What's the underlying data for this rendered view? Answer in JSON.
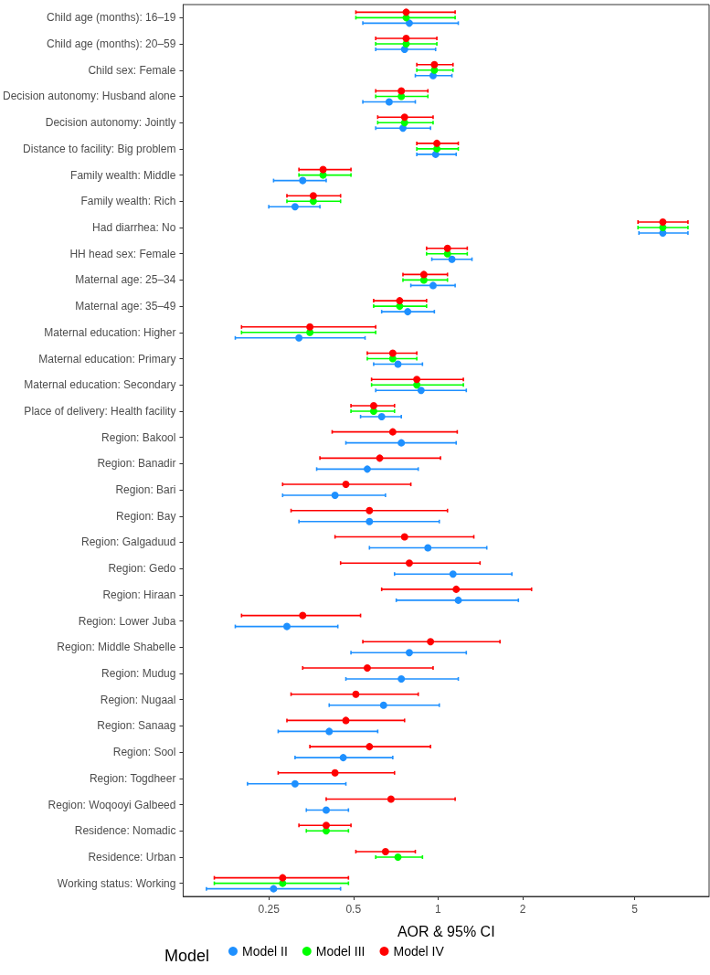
{
  "chart_data": {
    "type": "scatter",
    "orientation": "horizontal",
    "log": "x",
    "marker": "circle",
    "legend": "bottom",
    "legend_title": "Model",
    "xlabel": "AOR & 95% CI",
    "xlim": [
      0.124,
      9.2
    ],
    "xticks": [
      0.25,
      0.5,
      1,
      2,
      5
    ],
    "categories": [
      "Child age (months): 16–19",
      "Child age (months): 20–59",
      "Child sex: Female",
      "Decision autonomy: Husband alone",
      "Decision autonomy: Jointly",
      "Distance to facility: Big problem",
      "Family wealth: Middle",
      "Family wealth: Rich",
      "Had diarrhea: No",
      "HH head sex: Female",
      "Maternal age: 25–34",
      "Maternal age: 35–49",
      "Maternal education: Higher",
      "Maternal education: Primary",
      "Maternal education: Secondary",
      "Place of delivery: Health facility",
      "Region: Bakool",
      "Region: Banadir",
      "Region: Bari",
      "Region: Bay",
      "Region: Galgaduud",
      "Region: Gedo",
      "Region: Hiraan",
      "Region: Lower Juba",
      "Region: Middle Shabelle",
      "Region: Mudug",
      "Region: Nugaal",
      "Region: Sanaag",
      "Region: Sool",
      "Region: Togdheer",
      "Region: Woqooyi Galbeed",
      "Residence: Nomadic",
      "Residence: Urban",
      "Working status: Working"
    ],
    "series": [
      {
        "name": "Model II",
        "color": "#1e90ff",
        "values": [
          0.79,
          0.76,
          0.96,
          0.67,
          0.75,
          0.98,
          0.33,
          0.31,
          6.3,
          1.12,
          0.96,
          0.78,
          0.32,
          0.72,
          0.87,
          0.63,
          0.74,
          0.56,
          0.43,
          0.57,
          0.92,
          1.13,
          1.18,
          0.29,
          0.79,
          0.74,
          0.64,
          0.41,
          0.46,
          0.31,
          0.4,
          null,
          null,
          0.26
        ],
        "errors": [
          [
            0.54,
            1.18
          ],
          [
            0.6,
            0.98
          ],
          [
            0.83,
            1.12
          ],
          [
            0.54,
            0.83
          ],
          [
            0.6,
            0.94
          ],
          [
            0.84,
            1.16
          ],
          [
            0.26,
            0.4
          ],
          [
            0.25,
            0.38
          ],
          [
            5.18,
            7.74
          ],
          [
            0.95,
            1.32
          ],
          [
            0.8,
            1.15
          ],
          [
            0.63,
            0.97
          ],
          [
            0.19,
            0.55
          ],
          [
            0.59,
            0.88
          ],
          [
            0.6,
            1.26
          ],
          [
            0.53,
            0.74
          ],
          [
            0.47,
            1.16
          ],
          [
            0.37,
            0.85
          ],
          [
            0.28,
            0.65
          ],
          [
            0.32,
            1.01
          ],
          [
            0.57,
            1.49
          ],
          [
            0.7,
            1.83
          ],
          [
            0.71,
            1.93
          ],
          [
            0.19,
            0.44
          ],
          [
            0.49,
            1.26
          ],
          [
            0.47,
            1.18
          ],
          [
            0.41,
            1.01
          ],
          [
            0.27,
            0.61
          ],
          [
            0.31,
            0.69
          ],
          [
            0.21,
            0.47
          ],
          [
            0.34,
            0.48
          ],
          null,
          null,
          [
            0.15,
            0.45
          ]
        ]
      },
      {
        "name": "Model III",
        "color": "#00ff00",
        "values": [
          0.77,
          0.77,
          0.97,
          0.74,
          0.76,
          0.99,
          0.39,
          0.36,
          6.3,
          1.08,
          0.89,
          0.73,
          0.35,
          0.69,
          0.84,
          0.59,
          null,
          null,
          null,
          null,
          null,
          null,
          null,
          null,
          null,
          null,
          null,
          null,
          null,
          null,
          null,
          0.4,
          0.72,
          0.28
        ],
        "errors": [
          [
            0.51,
            1.15
          ],
          [
            0.6,
            0.99
          ],
          [
            0.84,
            1.13
          ],
          [
            0.6,
            0.92
          ],
          [
            0.61,
            0.96
          ],
          [
            0.84,
            1.18
          ],
          [
            0.32,
            0.49
          ],
          [
            0.29,
            0.45
          ],
          [
            5.14,
            7.74
          ],
          [
            0.91,
            1.27
          ],
          [
            0.75,
            1.08
          ],
          [
            0.59,
            0.91
          ],
          [
            0.2,
            0.6
          ],
          [
            0.56,
            0.84
          ],
          [
            0.58,
            1.23
          ],
          [
            0.49,
            0.7
          ],
          null,
          null,
          null,
          null,
          null,
          null,
          null,
          null,
          null,
          null,
          null,
          null,
          null,
          null,
          null,
          [
            0.34,
            0.48
          ],
          [
            0.6,
            0.88
          ],
          [
            0.16,
            0.48
          ]
        ]
      },
      {
        "name": "Model IV",
        "color": "#ff0000",
        "values": [
          0.77,
          0.77,
          0.97,
          0.74,
          0.76,
          0.99,
          0.39,
          0.36,
          6.3,
          1.08,
          0.89,
          0.73,
          0.35,
          0.69,
          0.84,
          0.59,
          0.69,
          0.62,
          0.47,
          0.57,
          0.76,
          0.79,
          1.16,
          0.33,
          0.94,
          0.56,
          0.51,
          0.47,
          0.57,
          0.43,
          0.68,
          0.4,
          0.65,
          0.28
        ],
        "errors": [
          [
            0.51,
            1.15
          ],
          [
            0.6,
            0.99
          ],
          [
            0.84,
            1.13
          ],
          [
            0.6,
            0.92
          ],
          [
            0.61,
            0.96
          ],
          [
            0.84,
            1.18
          ],
          [
            0.32,
            0.49
          ],
          [
            0.29,
            0.45
          ],
          [
            5.14,
            7.74
          ],
          [
            0.91,
            1.27
          ],
          [
            0.75,
            1.08
          ],
          [
            0.59,
            0.91
          ],
          [
            0.2,
            0.6
          ],
          [
            0.56,
            0.84
          ],
          [
            0.58,
            1.23
          ],
          [
            0.49,
            0.7
          ],
          [
            0.42,
            1.17
          ],
          [
            0.38,
            1.02
          ],
          [
            0.28,
            0.8
          ],
          [
            0.3,
            1.08
          ],
          [
            0.43,
            1.34
          ],
          [
            0.45,
            1.41
          ],
          [
            0.63,
            2.15
          ],
          [
            0.2,
            0.53
          ],
          [
            0.54,
            1.66
          ],
          [
            0.33,
            0.96
          ],
          [
            0.3,
            0.85
          ],
          [
            0.29,
            0.76
          ],
          [
            0.35,
            0.94
          ],
          [
            0.27,
            0.7
          ],
          [
            0.4,
            1.15
          ],
          [
            0.32,
            0.49
          ],
          [
            0.51,
            0.83
          ],
          [
            0.16,
            0.48
          ]
        ]
      }
    ]
  }
}
